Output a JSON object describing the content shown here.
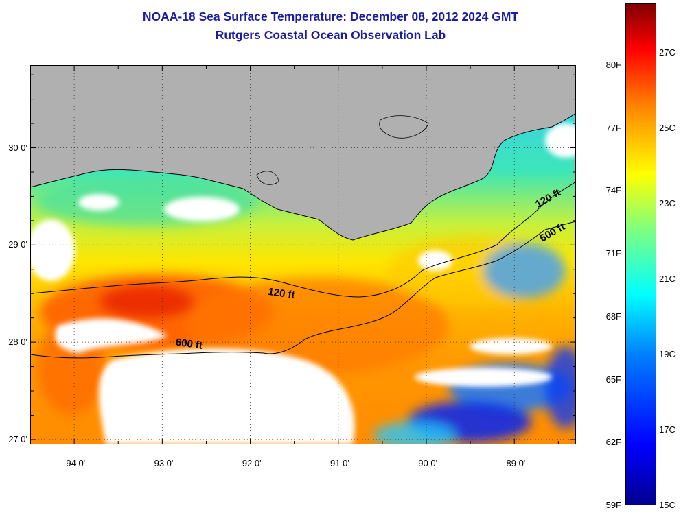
{
  "title": "NOAA-18 Sea Surface Temperature:  December 08, 2012 2024 GMT",
  "subtitle": "Rutgers Coastal Ocean Observation Lab",
  "colors": {
    "title": "#1c1c9e",
    "land": "#b0b0b0",
    "cloud": "#ffffff",
    "contour": "#000000",
    "grid": "#333333"
  },
  "map": {
    "lon_range": [
      -94.5,
      -88.3
    ],
    "lat_range": [
      26.95,
      30.85
    ],
    "lon_ticks": [
      {
        "value": -94,
        "label": "-94 0'"
      },
      {
        "value": -93,
        "label": "-93 0'"
      },
      {
        "value": -92,
        "label": "-92 0'"
      },
      {
        "value": -91,
        "label": "-91 0'"
      },
      {
        "value": -90,
        "label": "-90 0'"
      },
      {
        "value": -89,
        "label": "-89 0'"
      }
    ],
    "lat_ticks": [
      {
        "value": 30,
        "label": "30 0'"
      },
      {
        "value": 29,
        "label": "29 0'"
      },
      {
        "value": 28,
        "label": "28 0'"
      },
      {
        "value": 27,
        "label": "27 0'"
      }
    ],
    "contour_labels": [
      {
        "text": "120 ft",
        "lon": -91.65,
        "lat": 28.47
      },
      {
        "text": "600 ft",
        "lon": -92.7,
        "lat": 27.95
      },
      {
        "text": "120 ft",
        "lon": -88.6,
        "lat": 29.45
      },
      {
        "text": "600 ft",
        "lon": -88.55,
        "lat": 29.1
      }
    ]
  },
  "colorbar": {
    "min_c": 15,
    "max_c": 28.3,
    "fahrenheit_labels": [
      "80F",
      "77F",
      "74F",
      "71F",
      "68F",
      "65F",
      "62F",
      "59F"
    ],
    "celsius_labels": [
      "27C",
      "25C",
      "23C",
      "21C",
      "19C",
      "17C",
      "15C"
    ]
  }
}
